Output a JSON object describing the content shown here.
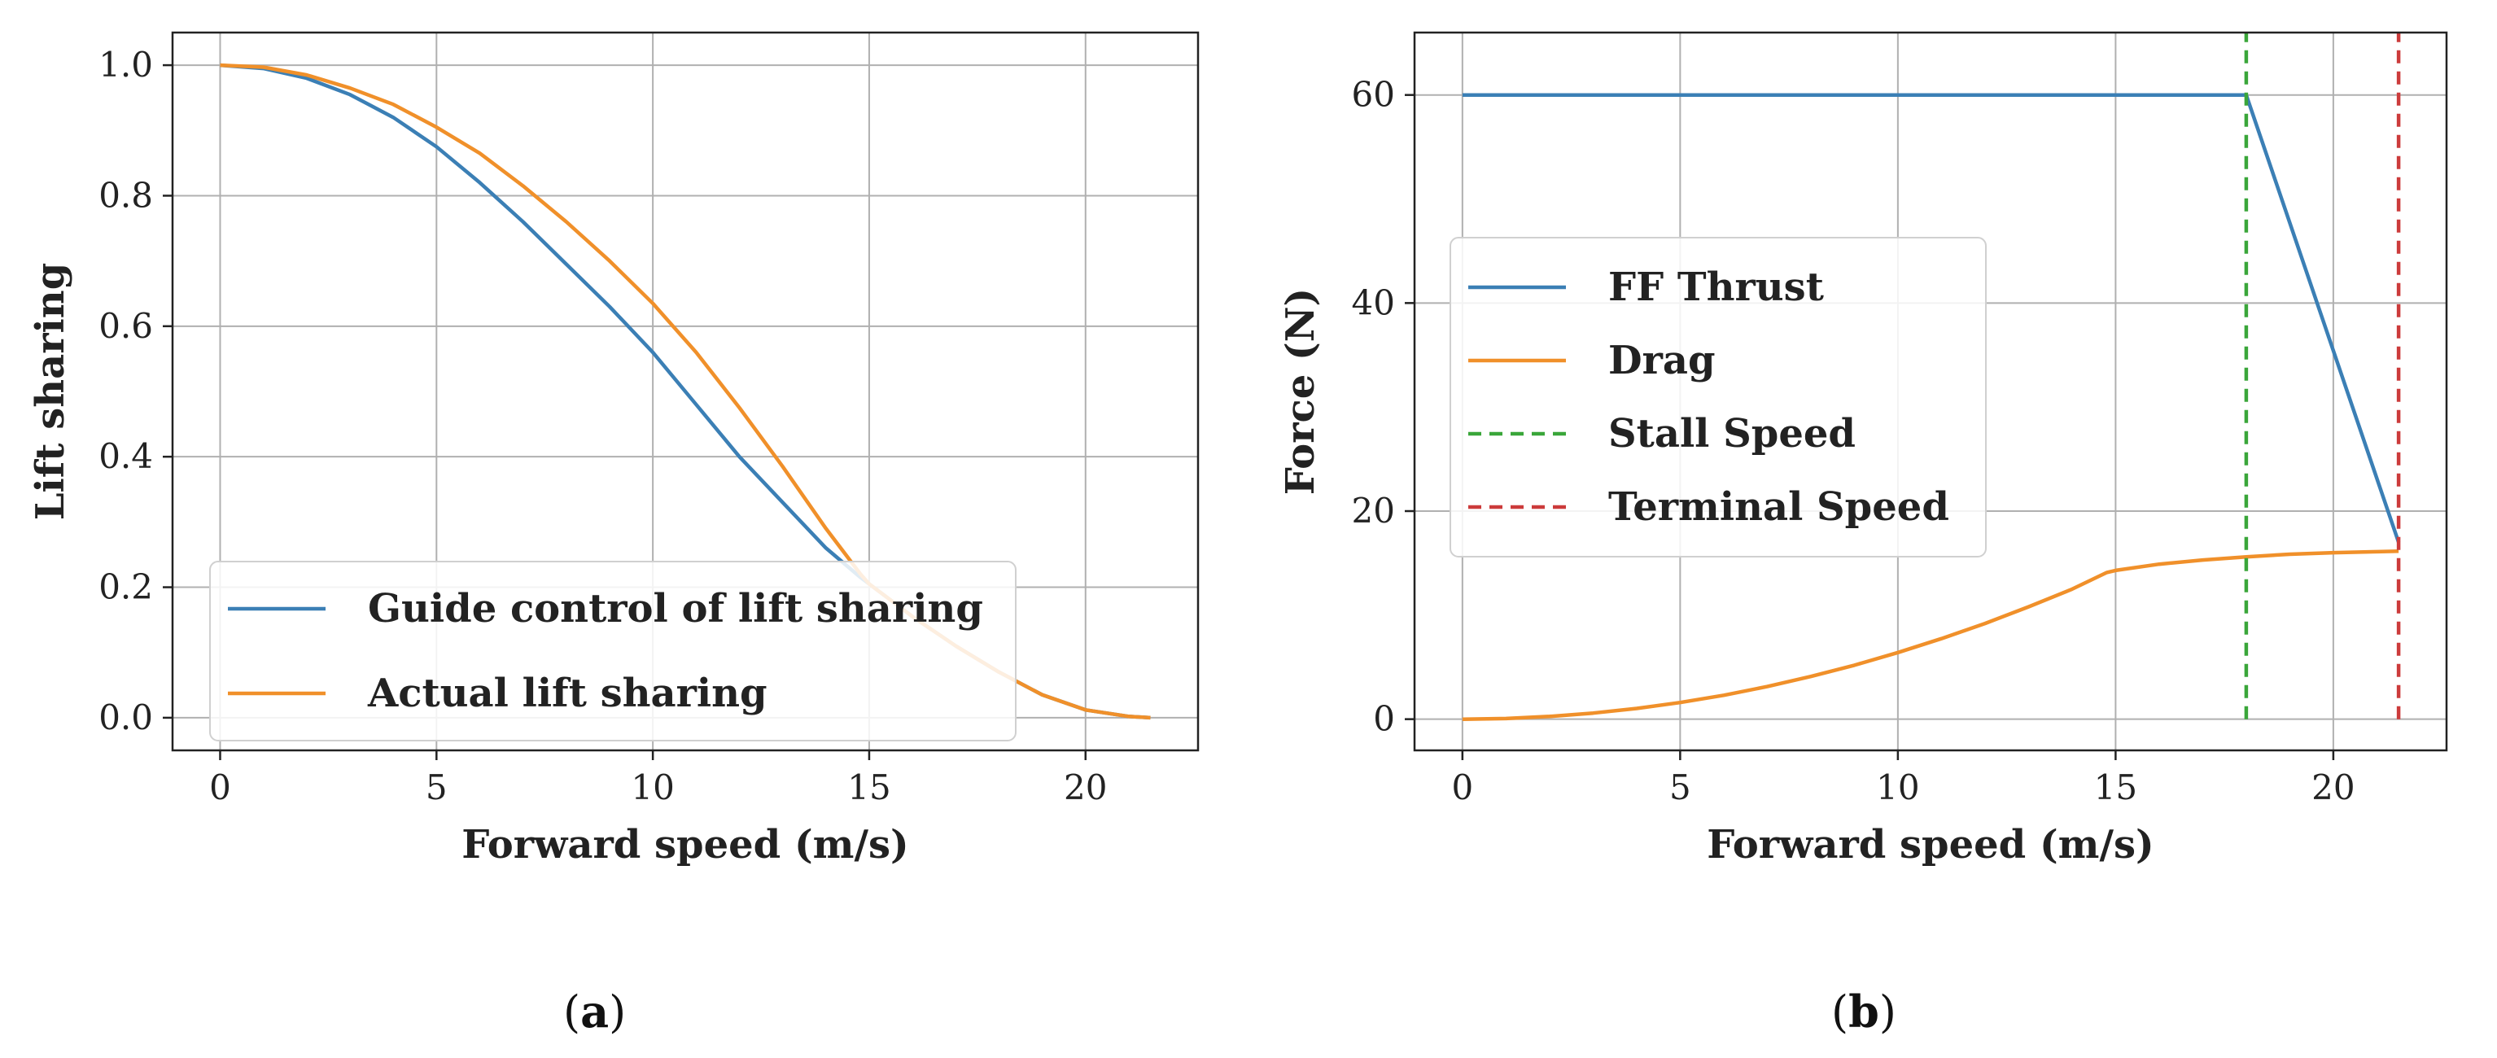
{
  "chart_data": [
    {
      "type": "line",
      "panel_label": "(a)",
      "panel_letter": "a",
      "title": "",
      "xlabel": "Forward speed (m/s)",
      "ylabel": "Lift sharing",
      "xlim": [
        -1.1,
        22.6
      ],
      "ylim": [
        -0.05,
        1.05
      ],
      "grid": true,
      "legend_position": "lower-left",
      "x_ticks": [
        0,
        5,
        10,
        15,
        20
      ],
      "x_tick_labels": [
        "0",
        "5",
        "10",
        "15",
        "20"
      ],
      "y_ticks": [
        0.0,
        0.2,
        0.4,
        0.6,
        0.8,
        1.0
      ],
      "y_tick_labels": [
        "0.0",
        "0.2",
        "0.4",
        "0.6",
        "0.8",
        "1.0"
      ],
      "series": [
        {
          "name": "Guide control of lift sharing",
          "color": "#3b7fb5",
          "style": "solid",
          "x": [
            0,
            1,
            2,
            3,
            4,
            5,
            6,
            7,
            8,
            9,
            10,
            11,
            12,
            13,
            14,
            14.8,
            15,
            16,
            17,
            18,
            19,
            20,
            21,
            21.5
          ],
          "y": [
            1.0,
            0.995,
            0.98,
            0.955,
            0.92,
            0.875,
            0.82,
            0.76,
            0.695,
            0.63,
            0.56,
            0.48,
            0.4,
            0.33,
            0.26,
            0.215,
            0.205,
            0.155,
            0.11,
            0.07,
            0.035,
            0.012,
            0.002,
            0.0
          ]
        },
        {
          "name": "Actual lift sharing",
          "color": "#f0902a",
          "style": "solid",
          "x": [
            0,
            1,
            2,
            3,
            4,
            5,
            6,
            7,
            8,
            9,
            10,
            11,
            12,
            13,
            14,
            14.8,
            15,
            16,
            17,
            18,
            19,
            20,
            21,
            21.5
          ],
          "y": [
            1.0,
            0.997,
            0.985,
            0.965,
            0.94,
            0.905,
            0.865,
            0.815,
            0.76,
            0.7,
            0.635,
            0.56,
            0.475,
            0.385,
            0.29,
            0.22,
            0.205,
            0.155,
            0.11,
            0.07,
            0.035,
            0.012,
            0.002,
            0.0
          ]
        }
      ]
    },
    {
      "type": "line",
      "panel_label": "(b)",
      "panel_letter": "b",
      "title": "",
      "xlabel": "Forward speed (m/s)",
      "ylabel": "Force (N)",
      "xlim": [
        -1.1,
        22.6
      ],
      "ylim": [
        -3,
        66
      ],
      "grid": true,
      "legend_position": "center-left",
      "x_ticks": [
        0,
        5,
        10,
        15,
        20
      ],
      "x_tick_labels": [
        "0",
        "5",
        "10",
        "15",
        "20"
      ],
      "y_ticks": [
        0,
        20,
        40,
        60
      ],
      "y_tick_labels": [
        "0",
        "20",
        "40",
        "60"
      ],
      "series": [
        {
          "name": "FF Thrust",
          "color": "#3b7fb5",
          "style": "solid",
          "x": [
            0,
            18.0,
            21.5
          ],
          "y": [
            60,
            60,
            17
          ]
        },
        {
          "name": "Drag",
          "color": "#f0902a",
          "style": "solid",
          "x": [
            0,
            1,
            2,
            3,
            4,
            5,
            6,
            7,
            8,
            9,
            10,
            11,
            12,
            13,
            14,
            14.8,
            15,
            16,
            17,
            18,
            19,
            20,
            21,
            21.5
          ],
          "y": [
            0,
            0.06,
            0.26,
            0.58,
            1.03,
            1.6,
            2.3,
            3.13,
            4.1,
            5.18,
            6.4,
            7.74,
            9.2,
            10.8,
            12.5,
            14.1,
            14.3,
            14.9,
            15.3,
            15.6,
            15.85,
            16.0,
            16.1,
            16.15
          ]
        },
        {
          "name": "Stall Speed",
          "color": "#3aa63a",
          "style": "dashed",
          "x": [
            18.0,
            18.0
          ],
          "y": [
            0,
            66
          ]
        },
        {
          "name": "Terminal Speed",
          "color": "#cc3b3b",
          "style": "dashed",
          "x": [
            21.5,
            21.5
          ],
          "y": [
            0,
            66
          ]
        }
      ]
    }
  ]
}
